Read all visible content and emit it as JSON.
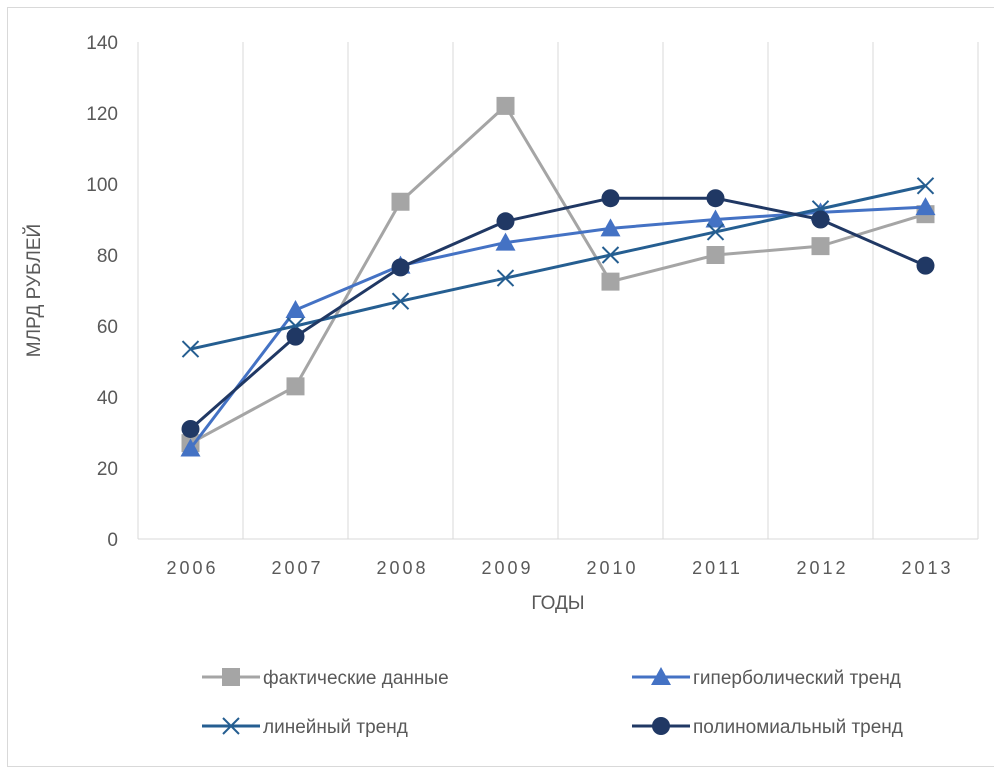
{
  "chart_data": {
    "type": "line",
    "title": "",
    "xlabel": "ГОДЫ",
    "ylabel": "МЛРД РУБЛЕЙ",
    "categories": [
      "2006",
      "2007",
      "2008",
      "2009",
      "2010",
      "2011",
      "2012",
      "2013"
    ],
    "ylim": [
      0,
      140
    ],
    "yticks": [
      0,
      20,
      40,
      60,
      80,
      100,
      120,
      140
    ],
    "grid": "vertical",
    "legend_position": "bottom",
    "series": [
      {
        "name": "фактические данные",
        "marker": "square",
        "color": "#a5a5a5",
        "values": [
          27,
          43,
          95,
          122,
          72.5,
          80,
          82.5,
          91.5
        ]
      },
      {
        "name": "гиперболический тренд",
        "marker": "triangle",
        "color": "#4472c4",
        "values": [
          25.5,
          64.5,
          77,
          83.5,
          87.5,
          90,
          92,
          93.5
        ]
      },
      {
        "name": "линейный тренд",
        "marker": "x",
        "color": "#255e91",
        "values": [
          53.5,
          60,
          67,
          73.5,
          80,
          86.5,
          93,
          99.5
        ]
      },
      {
        "name": "полиномиальный тренд",
        "marker": "circle",
        "color": "#203864",
        "values": [
          31,
          57,
          76.5,
          89.5,
          96,
          96,
          90,
          77
        ]
      }
    ]
  }
}
